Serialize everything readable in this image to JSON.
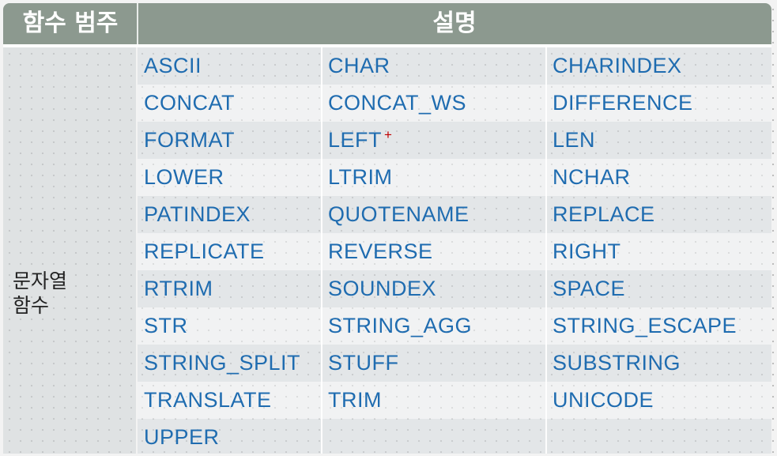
{
  "header": {
    "category": "함수 범주",
    "description": "설명"
  },
  "category_label": "문자열\n함수",
  "rows": [
    [
      "ASCII",
      "CHAR",
      "CHARINDEX"
    ],
    [
      "CONCAT",
      "CONCAT_WS",
      "DIFFERENCE"
    ],
    [
      "FORMAT",
      "LEFT",
      "LEN"
    ],
    [
      "LOWER",
      "LTRIM",
      "NCHAR"
    ],
    [
      "PATINDEX",
      "QUOTENAME",
      "REPLACE"
    ],
    [
      "REPLICATE",
      "REVERSE",
      "RIGHT"
    ],
    [
      "RTRIM",
      "SOUNDEX",
      "SPACE"
    ],
    [
      "STR",
      "STRING_AGG",
      "STRING_ESCAPE"
    ],
    [
      "STRING_SPLIT",
      "STUFF",
      "SUBSTRING"
    ],
    [
      "TRANSLATE",
      "TRIM",
      "UNICODE"
    ],
    [
      "UPPER",
      "",
      ""
    ]
  ],
  "marker": "+",
  "colors": {
    "header_bg": "#8c998f",
    "header_text": "#ffffff",
    "function_text": "#1f6cb0",
    "marker": "#c00000"
  }
}
